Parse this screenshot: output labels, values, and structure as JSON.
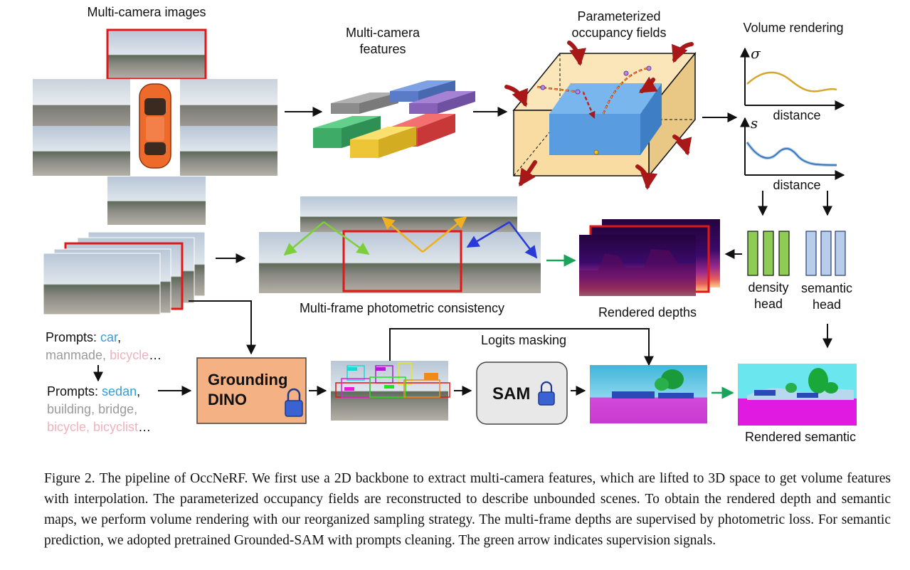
{
  "labels": {
    "multi_camera_images": "Multi-camera images",
    "multi_camera_features_1": "Multi-camera",
    "multi_camera_features_2": "features",
    "occupancy_fields_1": "Parameterized",
    "occupancy_fields_2": "occupancy fields",
    "volume_rendering": "Volume rendering",
    "sigma_symbol": "σ",
    "s_symbol": "s",
    "distance_1": "distance",
    "distance_2": "distance",
    "photometric_consistency": "Multi-frame photometric consistency",
    "rendered_depths": "Rendered depths",
    "density_head_1": "density",
    "density_head_2": "head",
    "semantic_head_1": "semantic",
    "semantic_head_2": "head",
    "logits_masking": "Logits masking",
    "rendered_semantic": "Rendered semantic",
    "grounding_dino_1": "Grounding",
    "grounding_dino_2": "DINO",
    "sam": "SAM"
  },
  "prompts_raw": {
    "label": "Prompts:",
    "car": "car",
    "comma1": ",",
    "manmade": "manmade",
    "comma2": ", ",
    "bicycle": "bicycle",
    "ellipsis": "…"
  },
  "prompts_clean": {
    "label": "Prompts:",
    "sedan": "sedan",
    "comma1": ",",
    "building": "building",
    "bridge": "bridge",
    "bicycle": "bicycle",
    "bicyclist": "bicyclist",
    "ellipsis": "…"
  },
  "colors": {
    "feature_gray": "#9e9e9e",
    "feature_blue": "#6f8fd8",
    "feature_purple": "#9a6fc4",
    "feature_green": "#52c47a",
    "feature_yellow": "#f5d24a",
    "feature_red": "#ef5a5a",
    "volume_box": "#f8dfa8",
    "inner_box": "#5b9ee0",
    "density_head": "#8fcc55",
    "semantic_head": "#b8ccec",
    "dino_box": "#f4b183",
    "sam_box": "#e8e8e8",
    "red_arrow": "#a81818",
    "green_arrow": "#1aa35a",
    "sigma_curve": "#d6a62a",
    "s_curve": "#4f8cc9",
    "blue_text": "#3a9ad8",
    "gray_text": "#9a9a9a",
    "pink_text": "#efb3bd"
  },
  "caption": {
    "figure_number": "Figure 2.",
    "text": "The pipeline of OccNeRF. We first use a 2D backbone to extract multi-camera features, which are lifted to 3D space to get volume features with interpolation. The parameterized occupancy fields are reconstructed to describe unbounded scenes. To obtain the rendered depth and semantic maps, we perform volume rendering with our reorganized sampling strategy. The multi-frame depths are supervised by photometric loss. For semantic prediction, we adopted pretrained Grounded-SAM with prompts cleaning. The green arrow indicates supervision signals."
  }
}
